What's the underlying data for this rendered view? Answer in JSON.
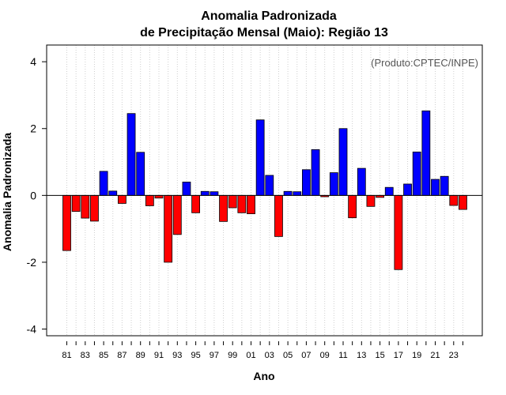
{
  "chart_data": {
    "type": "bar",
    "title": "Anomalia Padronizada",
    "subtitle": "de Precipitação Mensal (Maio): Região 13",
    "xlabel": "Ano",
    "ylabel": "Anomalia Padronizada",
    "annotation": "(Produto:CPTEC/INPE)",
    "ylim": [
      -4.2,
      4.5
    ],
    "yticks": [
      -4,
      -2,
      0,
      2,
      4
    ],
    "ytick_labels": [
      "-4",
      "-2",
      "0",
      "2",
      "4"
    ],
    "grid": true,
    "positive_color": "#0000ff",
    "negative_color": "#ff0000",
    "categories": [
      "1981",
      "1982",
      "1983",
      "1984",
      "1985",
      "1986",
      "1987",
      "1988",
      "1989",
      "1990",
      "1991",
      "1992",
      "1993",
      "1994",
      "1995",
      "1996",
      "1997",
      "1998",
      "1999",
      "2000",
      "2001",
      "2002",
      "2003",
      "2004",
      "2005",
      "2006",
      "2007",
      "2008",
      "2009",
      "2010",
      "2011",
      "2012",
      "2013",
      "2014",
      "2015",
      "2016",
      "2017",
      "2018",
      "2019",
      "2020",
      "2021",
      "2022",
      "2023",
      "2024"
    ],
    "values": [
      -1.65,
      -0.48,
      -0.68,
      -0.77,
      0.72,
      0.13,
      -0.24,
      2.45,
      1.29,
      -0.31,
      -0.08,
      -2.0,
      -1.17,
      0.4,
      -0.52,
      0.12,
      0.11,
      -0.78,
      -0.37,
      -0.52,
      -0.55,
      2.26,
      0.6,
      -1.23,
      0.12,
      0.11,
      0.77,
      1.37,
      -0.04,
      0.68,
      2.0,
      -0.67,
      0.81,
      -0.33,
      -0.06,
      0.24,
      -2.22,
      0.34,
      1.3,
      2.53,
      0.48,
      0.57,
      -0.3,
      -0.42
    ],
    "xtick_labels": [
      "81",
      "83",
      "85",
      "87",
      "89",
      "91",
      "93",
      "95",
      "97",
      "99",
      "01",
      "03",
      "05",
      "07",
      "09",
      "11",
      "13",
      "15",
      "17",
      "19",
      "21",
      "23"
    ]
  }
}
